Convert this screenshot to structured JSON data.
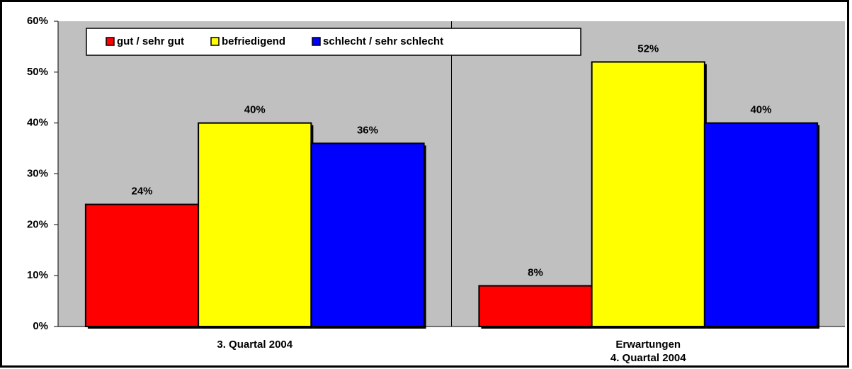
{
  "chart_data": {
    "type": "bar",
    "categories": [
      "3. Quartal 2004",
      "Erwartungen\n4. Quartal 2004"
    ],
    "series": [
      {
        "name": "gut / sehr gut",
        "color": "#ff0000",
        "values": [
          24,
          8
        ],
        "value_labels": [
          "24%",
          "8%"
        ]
      },
      {
        "name": "befriedigend",
        "color": "#ffff00",
        "values": [
          40,
          52
        ],
        "value_labels": [
          "40%",
          "52%"
        ]
      },
      {
        "name": "schlecht / sehr schlecht",
        "color": "#0000ff",
        "values": [
          36,
          40
        ],
        "value_labels": [
          "36%",
          "40%"
        ]
      }
    ],
    "ylim": [
      0,
      60
    ],
    "yticks": [
      {
        "value": 0,
        "label": "0%"
      },
      {
        "value": 10,
        "label": "10%"
      },
      {
        "value": 20,
        "label": "20%"
      },
      {
        "value": 30,
        "label": "30%"
      },
      {
        "value": 40,
        "label": "40%"
      },
      {
        "value": 50,
        "label": "50%"
      },
      {
        "value": 60,
        "label": "60%"
      }
    ],
    "legend": "top-left",
    "plot_background": "#c0c0c0"
  }
}
